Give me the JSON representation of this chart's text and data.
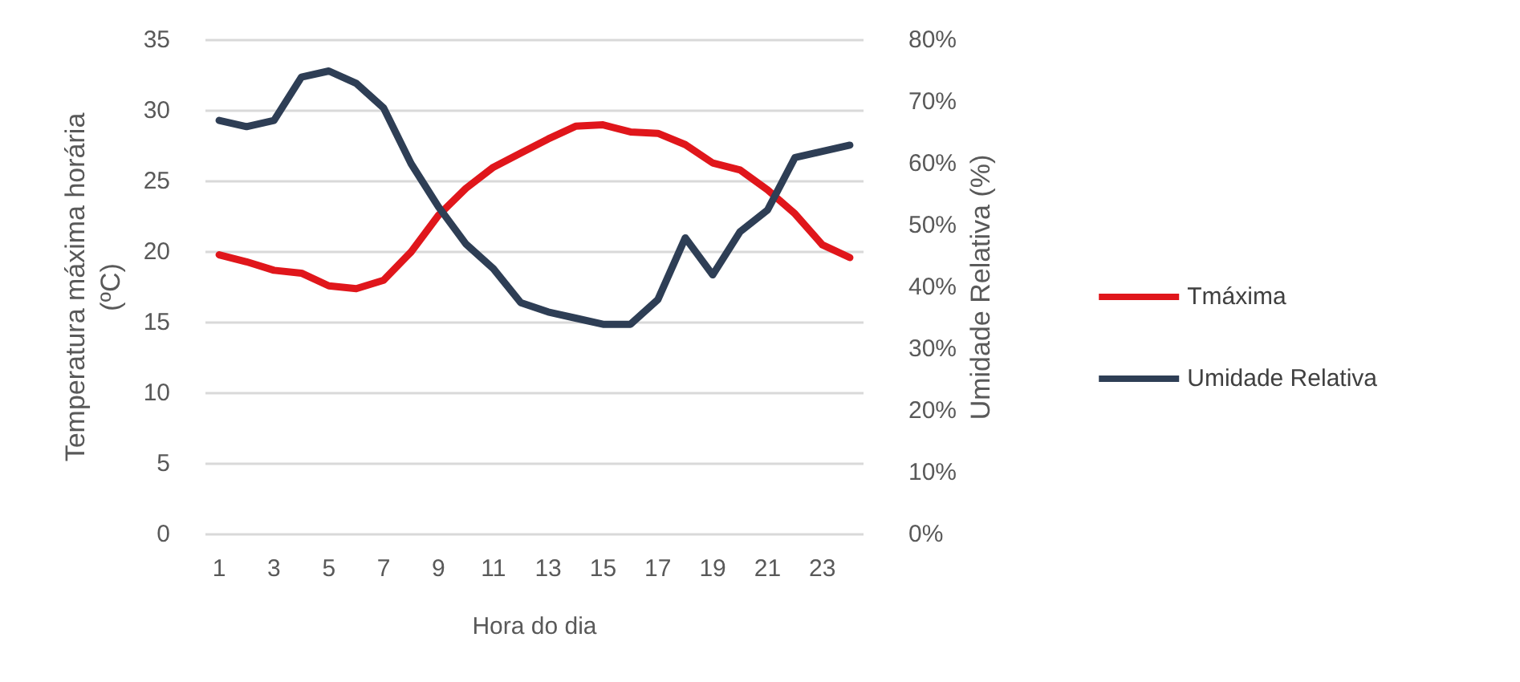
{
  "chart_data": {
    "type": "line",
    "xlabel": "Hora do dia",
    "ylabel": "Temperatura máxima horária\n(ºC)",
    "y2label": "Umidade Relativa (%)",
    "x": [
      1,
      2,
      3,
      4,
      5,
      6,
      7,
      8,
      9,
      10,
      11,
      12,
      13,
      14,
      15,
      16,
      17,
      18,
      19,
      20,
      21,
      22,
      23,
      24
    ],
    "xlim": [
      0.5,
      24.5
    ],
    "xticks": [
      1,
      3,
      5,
      7,
      9,
      11,
      13,
      15,
      17,
      19,
      21,
      23
    ],
    "series": [
      {
        "name": "Tmáxima",
        "color": "#e0161b",
        "values": [
          19.8,
          19.3,
          18.7,
          18.5,
          17.6,
          17.4,
          18.0,
          20.0,
          22.6,
          24.5,
          26.0,
          27.0,
          28.0,
          28.9,
          29.0,
          28.5,
          28.4,
          27.6,
          26.3,
          25.8,
          24.4,
          22.7,
          20.5,
          19.6
        ]
      },
      {
        "name": "Umidade Relativa",
        "color": "#2e3e55",
        "axis": "y2",
        "values": [
          67,
          66,
          67,
          74,
          75,
          73,
          69,
          60,
          53,
          47,
          43,
          37.5,
          36,
          35,
          34,
          34,
          38,
          48,
          42,
          49,
          52.5,
          61,
          62,
          63
        ]
      }
    ],
    "ylim": [
      0,
      35
    ],
    "yticks": [
      0,
      5,
      10,
      15,
      20,
      25,
      30,
      35
    ],
    "y2lim": [
      0,
      80
    ],
    "y2ticks": [
      {
        "value": 0,
        "label": "0%"
      },
      {
        "value": 10,
        "label": "10%"
      },
      {
        "value": 20,
        "label": "20%"
      },
      {
        "value": 30,
        "label": "30%"
      },
      {
        "value": 40,
        "label": "40%"
      },
      {
        "value": 50,
        "label": "50%"
      },
      {
        "value": 60,
        "label": "60%"
      },
      {
        "value": 70,
        "label": "70%"
      },
      {
        "value": 80,
        "label": "80%"
      }
    ],
    "grid": "y",
    "legend": "right",
    "marker": "none",
    "line_style": "solid"
  }
}
